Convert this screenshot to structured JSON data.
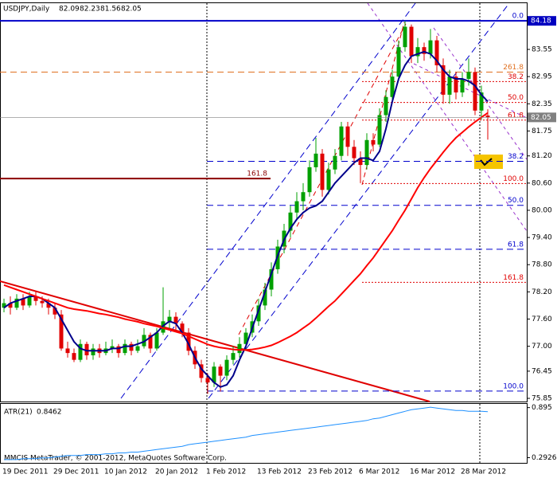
{
  "chart_data": [
    {
      "type": "candlestick",
      "title": "USDJPY,Daily",
      "categories": [
        "19 Dec 2011",
        null,
        null,
        null,
        null,
        null,
        null,
        null,
        "29 Dec 2011",
        null,
        null,
        null,
        null,
        null,
        null,
        null,
        "10 Jan 2012",
        null,
        null,
        null,
        null,
        null,
        null,
        null,
        "20 Jan 2012",
        null,
        null,
        null,
        null,
        null,
        null,
        null,
        "1 Feb 2012",
        null,
        null,
        null,
        null,
        null,
        null,
        null,
        "13 Feb 2012",
        null,
        null,
        null,
        null,
        null,
        null,
        null,
        "23 Feb 2012",
        null,
        null,
        null,
        null,
        null,
        null,
        null,
        "6 Mar 2012",
        null,
        null,
        null,
        null,
        null,
        null,
        null,
        "16 Mar 2012",
        null,
        null,
        null,
        null,
        null,
        null,
        null,
        "28 Mar 2012",
        null,
        null,
        null,
        null
      ],
      "series": [
        {
          "up_color": "#00a000",
          "down_color": "#e00000",
          "ohlc": [
            [
              77.85,
              78.05,
              77.75,
              77.95
            ],
            [
              77.95,
              78.1,
              77.7,
              77.85
            ],
            [
              77.85,
              78.15,
              77.8,
              78.05
            ],
            [
              78.05,
              78.15,
              77.8,
              77.9
            ],
            [
              77.9,
              78.2,
              77.85,
              78.1
            ],
            [
              78.1,
              78.2,
              77.9,
              78.0
            ],
            [
              78.0,
              78.1,
              77.85,
              77.95
            ],
            [
              77.95,
              78.05,
              77.7,
              77.85
            ],
            [
              77.85,
              77.95,
              77.6,
              77.7
            ],
            [
              77.7,
              77.8,
              76.9,
              76.95
            ],
            [
              76.95,
              77.1,
              76.75,
              76.85
            ],
            [
              76.85,
              76.95,
              76.65,
              76.7
            ],
            [
              76.7,
              77.15,
              76.65,
              77.05
            ],
            [
              77.05,
              77.1,
              76.7,
              76.8
            ],
            [
              76.8,
              77.05,
              76.7,
              76.95
            ],
            [
              76.95,
              77.05,
              76.75,
              76.85
            ],
            [
              76.85,
              77.1,
              76.8,
              76.95
            ],
            [
              76.95,
              77.15,
              76.85,
              77.0
            ],
            [
              77.0,
              77.05,
              76.75,
              76.85
            ],
            [
              76.85,
              77.15,
              76.8,
              77.05
            ],
            [
              77.05,
              77.1,
              76.8,
              76.9
            ],
            [
              76.9,
              77.15,
              76.85,
              77.0
            ],
            [
              77.0,
              77.4,
              76.95,
              77.25
            ],
            [
              77.25,
              77.3,
              76.85,
              76.95
            ],
            [
              76.95,
              77.4,
              76.9,
              77.3
            ],
            [
              77.3,
              78.3,
              77.25,
              77.55
            ],
            [
              77.55,
              77.8,
              77.4,
              77.65
            ],
            [
              77.65,
              77.75,
              77.35,
              77.5
            ],
            [
              77.5,
              77.55,
              77.2,
              77.3
            ],
            [
              77.3,
              77.4,
              76.8,
              76.9
            ],
            [
              76.9,
              77.0,
              76.5,
              76.6
            ],
            [
              76.6,
              76.7,
              76.2,
              76.3
            ],
            [
              76.3,
              76.4,
              75.95,
              76.2
            ],
            [
              76.2,
              76.65,
              76.1,
              76.55
            ],
            [
              76.55,
              76.6,
              76.0,
              76.35
            ],
            [
              76.35,
              76.8,
              76.25,
              76.7
            ],
            [
              76.7,
              77.0,
              76.6,
              76.85
            ],
            [
              76.85,
              77.2,
              76.75,
              77.05
            ],
            [
              77.05,
              77.4,
              76.9,
              77.3
            ],
            [
              77.3,
              77.7,
              77.2,
              77.55
            ],
            [
              77.55,
              78.05,
              77.45,
              77.9
            ],
            [
              77.9,
              78.4,
              77.8,
              78.25
            ],
            [
              78.25,
              78.85,
              78.1,
              78.7
            ],
            [
              78.7,
              79.35,
              78.6,
              79.2
            ],
            [
              79.2,
              79.7,
              79.05,
              79.55
            ],
            [
              79.55,
              80.1,
              79.4,
              79.95
            ],
            [
              79.95,
              80.4,
              79.8,
              80.2
            ],
            [
              80.2,
              80.6,
              80.0,
              80.4
            ],
            [
              80.4,
              81.1,
              80.3,
              80.95
            ],
            [
              80.95,
              81.6,
              80.85,
              81.25
            ],
            [
              81.25,
              81.35,
              80.3,
              80.45
            ],
            [
              80.45,
              81.05,
              80.35,
              80.9
            ],
            [
              80.9,
              81.35,
              80.8,
              81.2
            ],
            [
              81.2,
              81.95,
              81.1,
              81.85
            ],
            [
              81.85,
              81.95,
              81.2,
              81.4
            ],
            [
              81.4,
              81.55,
              81.0,
              81.15
            ],
            [
              81.15,
              81.3,
              80.6,
              81.0
            ],
            [
              81.0,
              81.7,
              80.9,
              81.55
            ],
            [
              81.55,
              81.7,
              81.3,
              81.45
            ],
            [
              81.45,
              82.25,
              81.4,
              82.1
            ],
            [
              82.1,
              82.65,
              81.95,
              82.5
            ],
            [
              82.5,
              83.1,
              82.4,
              82.95
            ],
            [
              82.95,
              83.75,
              82.85,
              83.6
            ],
            [
              83.6,
              84.18,
              83.5,
              84.05
            ],
            [
              84.05,
              84.1,
              83.25,
              83.4
            ],
            [
              83.4,
              83.8,
              83.25,
              83.6
            ],
            [
              83.6,
              83.7,
              83.3,
              83.45
            ],
            [
              83.45,
              84.0,
              83.35,
              83.75
            ],
            [
              83.75,
              83.85,
              83.05,
              83.2
            ],
            [
              83.2,
              83.35,
              82.35,
              82.55
            ],
            [
              82.55,
              83.1,
              82.35,
              82.95
            ],
            [
              82.95,
              83.05,
              82.45,
              82.6
            ],
            [
              82.6,
              83.05,
              82.5,
              82.9
            ],
            [
              82.9,
              83.35,
              82.75,
              83.05
            ],
            [
              83.05,
              83.15,
              82.1,
              82.2
            ],
            [
              82.2,
              82.75,
              82.0,
              82.6
            ],
            [
              82.09,
              82.23,
              81.56,
              82.05
            ]
          ]
        }
      ],
      "lines": [
        {
          "color": "#00008b",
          "values": [
            77.85,
            77.95,
            78.0,
            78.05,
            78.1,
            78.1,
            78.05,
            77.95,
            77.85,
            77.6,
            77.35,
            77.1,
            76.95,
            76.9,
            76.9,
            76.9,
            76.9,
            76.95,
            76.95,
            77.0,
            77.0,
            77.05,
            77.1,
            77.2,
            77.3,
            77.45,
            77.55,
            77.5,
            77.3,
            77.05,
            76.75,
            76.5,
            76.35,
            76.2,
            76.1,
            76.15,
            76.35,
            76.7,
            77.0,
            77.4,
            77.8,
            78.2,
            78.6,
            79.0,
            79.35,
            79.6,
            79.8,
            79.95,
            80.05,
            80.1,
            80.2,
            80.4,
            80.6,
            80.75,
            80.9,
            81.05,
            81.15,
            81.15,
            81.1,
            81.3,
            81.8,
            82.4,
            82.9,
            83.2,
            83.4,
            83.45,
            83.5,
            83.45,
            83.3,
            83.1,
            82.95,
            82.9,
            82.9,
            82.85,
            82.75,
            82.55,
            82.4
          ]
        },
        {
          "color": "#ff0000",
          "values": [
            78.35,
            78.3,
            78.25,
            78.2,
            78.15,
            78.1,
            78.05,
            78.0,
            77.95,
            77.9,
            77.85,
            77.82,
            77.8,
            77.78,
            77.75,
            77.72,
            77.7,
            77.67,
            77.64,
            77.6,
            77.57,
            77.54,
            77.5,
            77.47,
            77.44,
            77.4,
            77.36,
            77.32,
            77.28,
            77.22,
            77.16,
            77.1,
            77.04,
            77.0,
            76.97,
            76.95,
            76.93,
            76.92,
            76.92,
            76.93,
            76.95,
            76.98,
            77.02,
            77.08,
            77.15,
            77.22,
            77.3,
            77.4,
            77.5,
            77.62,
            77.75,
            77.88,
            78.0,
            78.15,
            78.3,
            78.45,
            78.6,
            78.78,
            78.95,
            79.15,
            79.35,
            79.55,
            79.78,
            80.0,
            80.25,
            80.5,
            80.72,
            80.92,
            81.1,
            81.28,
            81.45,
            81.6,
            81.72,
            81.84,
            81.95,
            82.05,
            82.15
          ]
        }
      ],
      "ylim": [
        75.78,
        84.57
      ],
      "yticks": [
        83.55,
        82.95,
        82.35,
        81.75,
        {
          "value": 81.2,
          "label": "81.20"
        },
        {
          "value": 80.6,
          "label": "80.60"
        },
        {
          "value": 80.0,
          "label": "80.00"
        },
        {
          "value": 79.4,
          "label": "79.40"
        },
        {
          "value": 78.8,
          "label": "78.80"
        },
        {
          "value": 78.2,
          "label": "78.20"
        },
        {
          "value": 77.6,
          "label": "77.60"
        },
        {
          "value": 77.0,
          "label": "77.00"
        },
        76.45,
        75.85
      ],
      "price_labels": [
        {
          "value": 84.18,
          "color": "#0000c0"
        },
        {
          "value": 82.05,
          "color": "#808080"
        }
      ],
      "levels": [
        {
          "label": "0.0",
          "price": 84.18,
          "color": "#0000cd",
          "style": "solid"
        },
        {
          "label": "261.8",
          "price": 83.05,
          "color": "#e07020",
          "style": "dashed"
        },
        {
          "label": "38.2",
          "price": 82.84,
          "color": "#e00000",
          "style": "dotted"
        },
        {
          "label": "50.0",
          "price": 82.38,
          "color": "#e00000",
          "style": "dotted"
        },
        {
          "label": "61.8",
          "price": 81.99,
          "color": "#e00000",
          "style": "dotted"
        },
        {
          "label": "161.8",
          "price": 80.7,
          "color": "#8b0000",
          "style": "solid"
        },
        {
          "label": "38.2",
          "price": 81.08,
          "color": "#0000cd",
          "style": "dashed"
        },
        {
          "label": "100.0",
          "price": 80.59,
          "color": "#e00000",
          "style": "dotted"
        },
        {
          "label": "50.0",
          "price": 80.11,
          "color": "#0000cd",
          "style": "dashed"
        },
        {
          "label": "61.8",
          "price": 79.14,
          "color": "#0000cd",
          "style": "dashed"
        },
        {
          "label": "161.8",
          "price": 78.41,
          "color": "#e00000",
          "style": "dotted"
        },
        {
          "label": "100.0",
          "price": 76.01,
          "color": "#0000cd",
          "style": "dashed"
        }
      ]
    },
    {
      "type": "line",
      "series": [
        {
          "name": "ATR(21)",
          "color": "#1e90ff",
          "values": [
            0.27,
            0.27,
            0.27,
            0.28,
            0.28,
            0.28,
            0.29,
            0.29,
            0.3,
            0.31,
            0.32,
            0.32,
            0.32,
            0.33,
            0.33,
            0.33,
            0.34,
            0.34,
            0.35,
            0.35,
            0.36,
            0.36,
            0.37,
            0.38,
            0.39,
            0.4,
            0.41,
            0.42,
            0.43,
            0.45,
            0.46,
            0.47,
            0.48,
            0.49,
            0.5,
            0.51,
            0.52,
            0.53,
            0.54,
            0.56,
            0.57,
            0.58,
            0.59,
            0.6,
            0.61,
            0.62,
            0.63,
            0.64,
            0.65,
            0.66,
            0.67,
            0.68,
            0.69,
            0.7,
            0.71,
            0.72,
            0.73,
            0.74,
            0.76,
            0.77,
            0.79,
            0.81,
            0.83,
            0.85,
            0.87,
            0.88,
            0.89,
            0.9,
            0.89,
            0.88,
            0.87,
            0.86,
            0.86,
            0.85,
            0.85,
            0.85,
            0.8462
          ]
        }
      ],
      "ylim": [
        0.24,
        0.93
      ],
      "yticks": [
        0.895,
        0.2926
      ]
    }
  ],
  "footer": "MMCIS MetaTrader, © 2001-2012, MetaQuotes Software Corp."
}
